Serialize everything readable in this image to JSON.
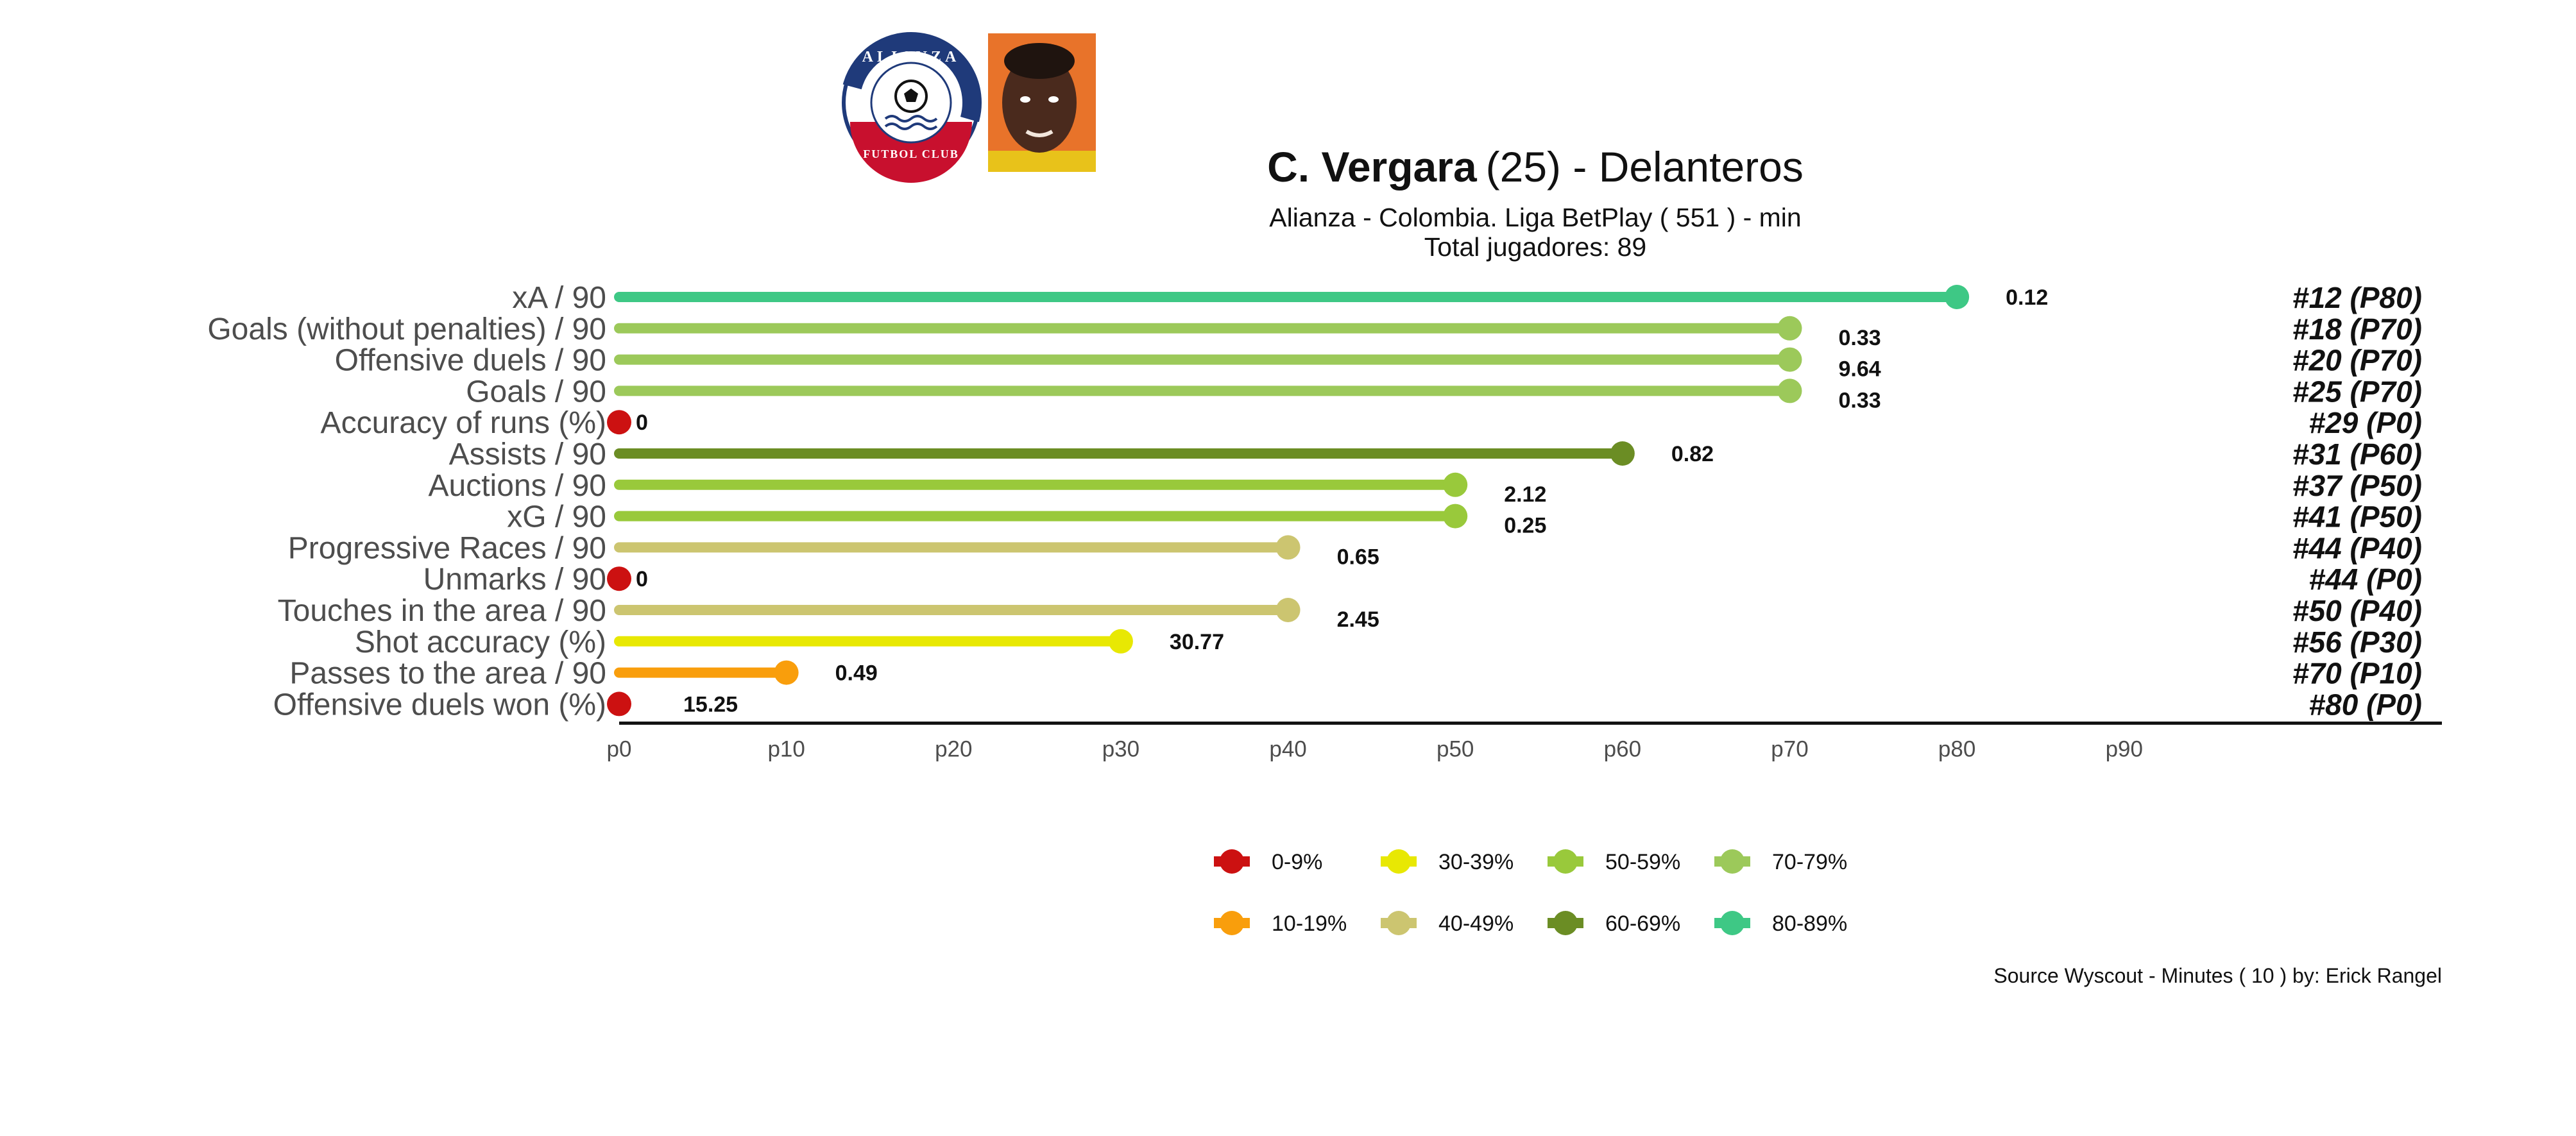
{
  "header": {
    "player_name": "C. Vergara",
    "player_age": "(25)",
    "separator": " -  ",
    "position": "Delanteros",
    "subtitle_line1": "Alianza  -  Colombia. Liga BetPlay  ( 551 ) - min",
    "subtitle_line2": "Total jugadores:  89",
    "club_logo": {
      "top_text": "ALIANZA",
      "bottom_text": "FUTBOL CLUB",
      "icon": "soccer-ball-icon"
    },
    "player_photo": {
      "icon": "player-photo"
    }
  },
  "footer": {
    "source": "Source Wyscout - Minutes ( 10 ) by: Erick Rangel"
  },
  "chart_data": {
    "type": "lollipop",
    "xlim": [
      0,
      109
    ],
    "x_ticks": [
      "p0",
      "p10",
      "p20",
      "p30",
      "p40",
      "p50",
      "p60",
      "p70",
      "p80",
      "p90"
    ],
    "x_tick_values": [
      0,
      10,
      20,
      30,
      40,
      50,
      60,
      70,
      80,
      90
    ],
    "grid": false,
    "legend_position": "bottom",
    "legend": [
      {
        "label": "0-9%",
        "color": "#cc1111"
      },
      {
        "label": "10-19%",
        "color": "#f99e0c"
      },
      {
        "label": "30-39%",
        "color": "#e8e803"
      },
      {
        "label": "40-49%",
        "color": "#ccc570"
      },
      {
        "label": "50-59%",
        "color": "#99c93b"
      },
      {
        "label": "60-69%",
        "color": "#6b8d24"
      },
      {
        "label": "70-79%",
        "color": "#9cc95a"
      },
      {
        "label": "80-89%",
        "color": "#3ec885"
      }
    ],
    "rows": [
      {
        "metric": "xA / 90",
        "percentile": 80,
        "value": "0.12",
        "rank": "#12 (P80)",
        "color": "#3ec885"
      },
      {
        "metric": "Goals (without penalties) / 90",
        "percentile": 70,
        "value": "0.33",
        "rank": "#18 (P70)",
        "color": "#9cc95a"
      },
      {
        "metric": "Offensive duels / 90",
        "percentile": 70,
        "value": "9.64",
        "rank": "#20 (P70)",
        "color": "#9cc95a"
      },
      {
        "metric": "Goals / 90",
        "percentile": 70,
        "value": "0.33",
        "rank": "#25 (P70)",
        "color": "#9cc95a"
      },
      {
        "metric": "Accuracy of runs (%)",
        "percentile": 0,
        "value": "0",
        "rank": "#29 (P0)",
        "color": "#cc1111"
      },
      {
        "metric": "Assists / 90",
        "percentile": 60,
        "value": "0.82",
        "rank": "#31 (P60)",
        "color": "#6b8d24"
      },
      {
        "metric": "Auctions / 90",
        "percentile": 50,
        "value": "2.12",
        "rank": "#37 (P50)",
        "color": "#99c93b"
      },
      {
        "metric": "xG / 90",
        "percentile": 50,
        "value": "0.25",
        "rank": "#41 (P50)",
        "color": "#99c93b"
      },
      {
        "metric": "Progressive Races / 90",
        "percentile": 40,
        "value": "0.65",
        "rank": "#44 (P40)",
        "color": "#ccc570"
      },
      {
        "metric": "Unmarks / 90",
        "percentile": 0,
        "value": "0",
        "rank": "#44 (P0)",
        "color": "#cc1111"
      },
      {
        "metric": "Touches in the area / 90",
        "percentile": 40,
        "value": "2.45",
        "rank": "#50 (P40)",
        "color": "#ccc570"
      },
      {
        "metric": "Shot accuracy (%)",
        "percentile": 30,
        "value": "30.77",
        "rank": "#56 (P30)",
        "color": "#e8e803"
      },
      {
        "metric": "Passes to the area / 90",
        "percentile": 10,
        "value": "0.49",
        "rank": "#70 (P10)",
        "color": "#f99e0c"
      },
      {
        "metric": "Offensive duels won (%)",
        "percentile": 0,
        "value": "15.25",
        "rank": "#80 (P0)",
        "color": "#cc1111"
      }
    ]
  }
}
